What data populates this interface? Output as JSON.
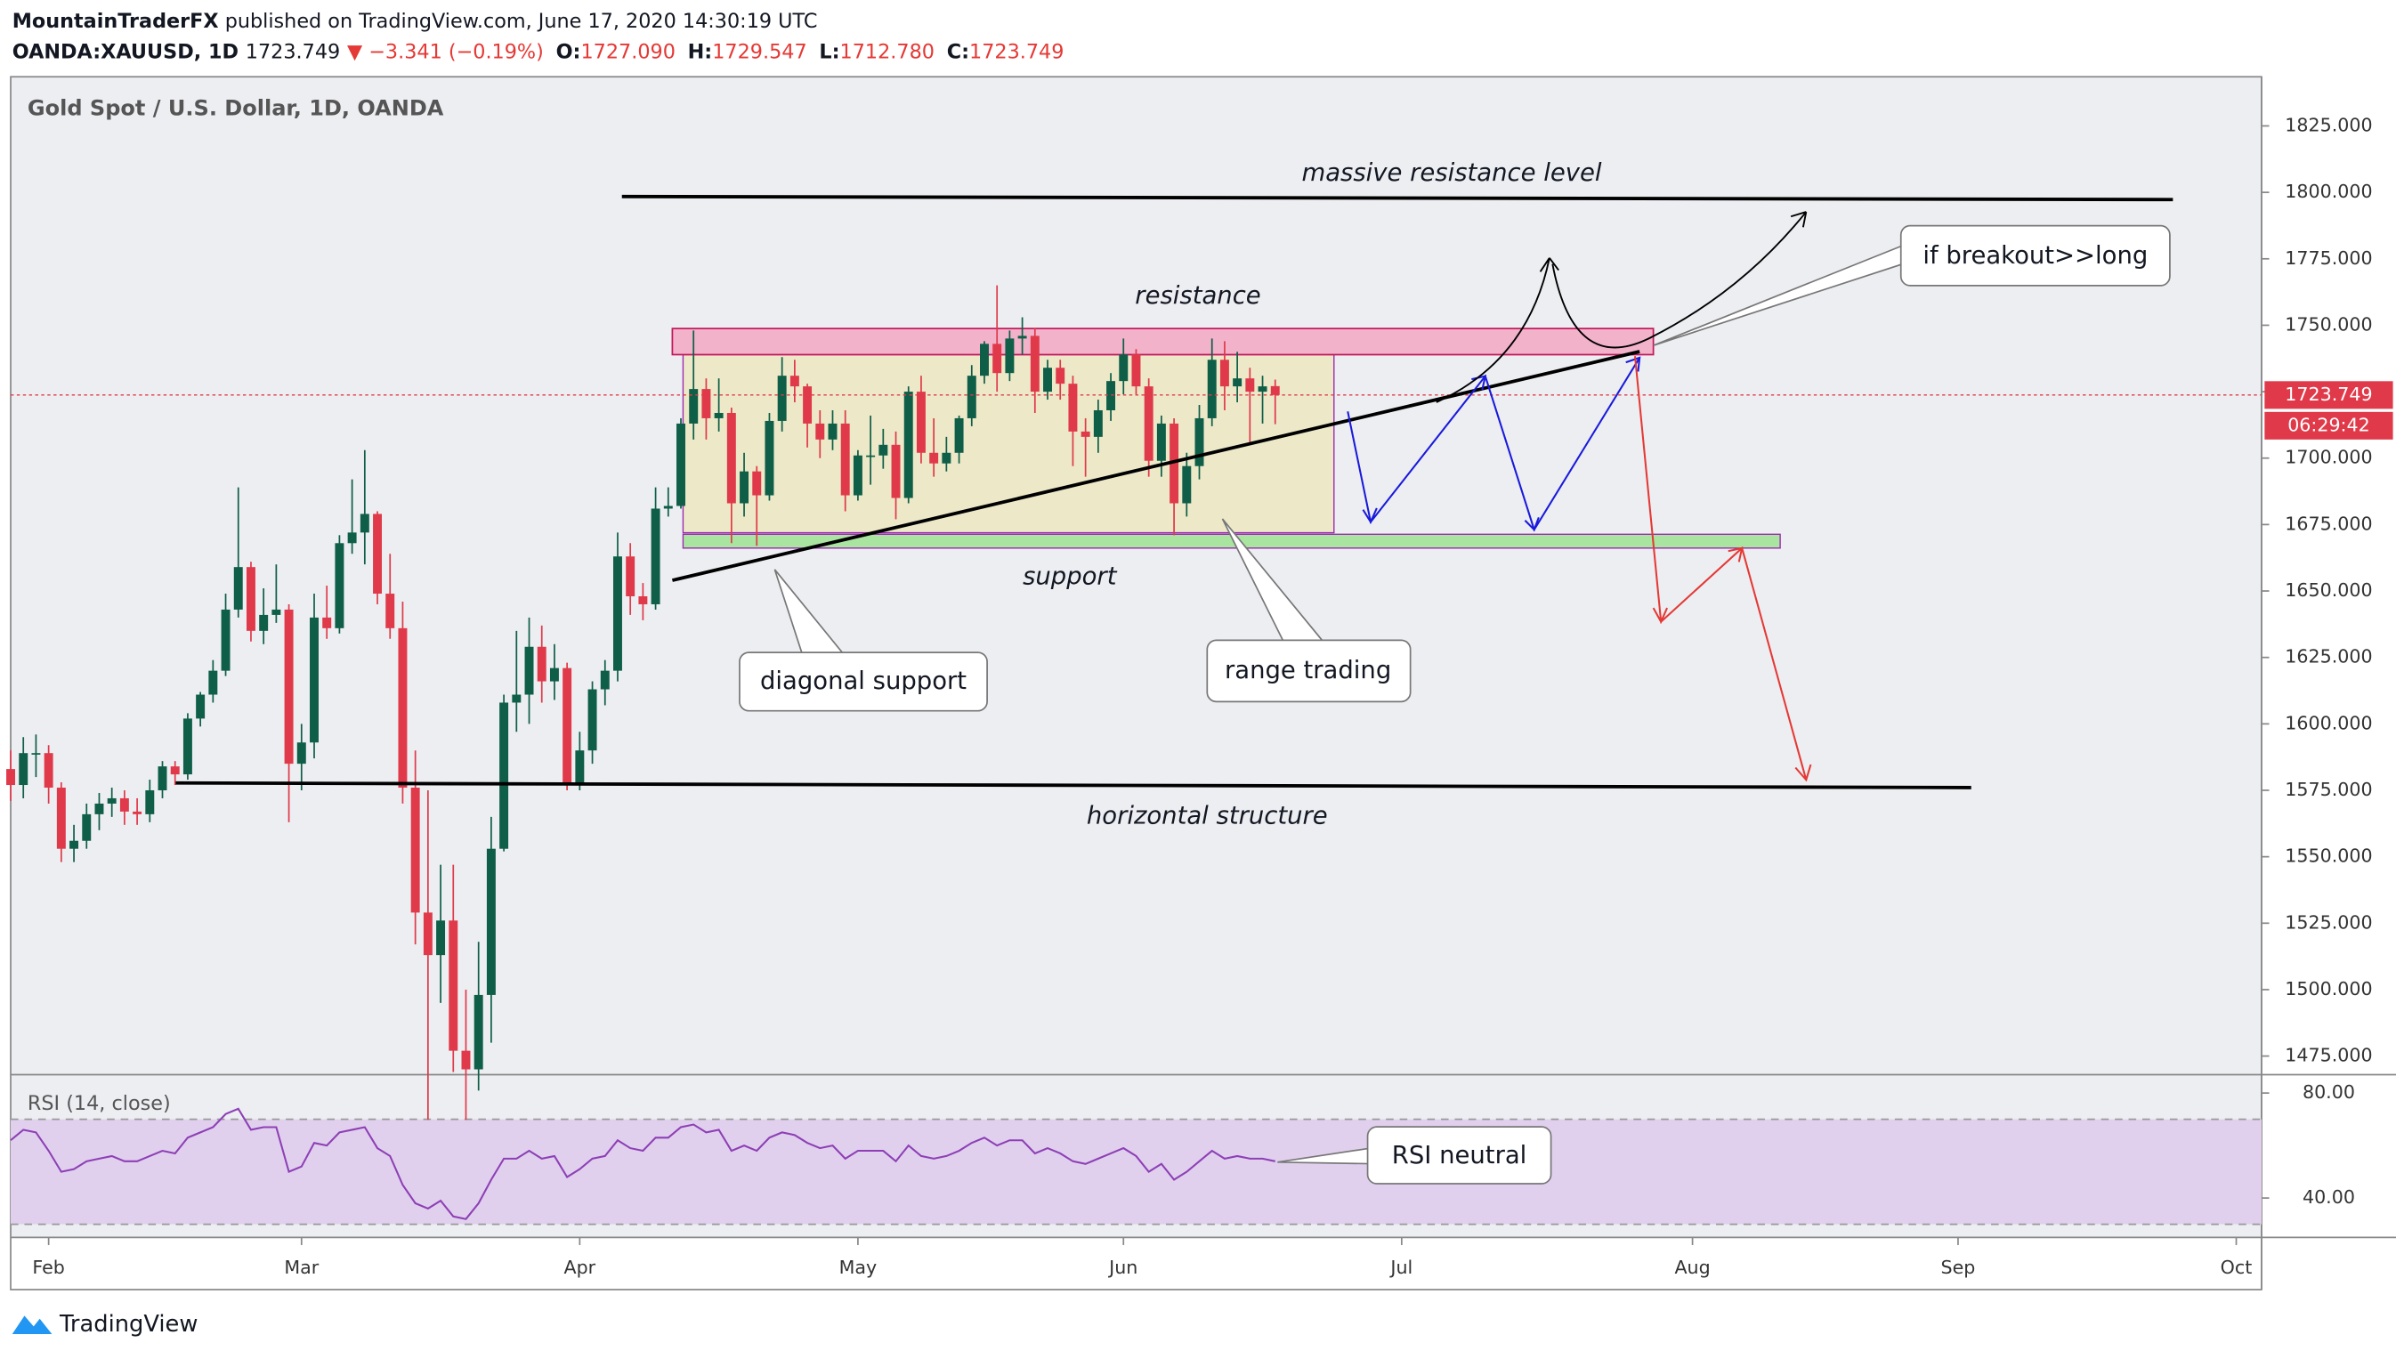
{
  "header": {
    "author": "MountainTraderFX",
    "published": "published on TradingView.com, June 17, 2020 14:30:19 UTC",
    "symbol": "OANDA:XAUUSD, 1D",
    "last": "1723.749",
    "change": "▼ −3.341 (−0.19%)",
    "ohlc": [
      {
        "label": "O:",
        "value": "1727.090"
      },
      {
        "label": "H:",
        "value": "1729.547"
      },
      {
        "label": "L:",
        "value": "1712.780"
      },
      {
        "label": "C:",
        "value": "1723.749"
      }
    ]
  },
  "chart_data": {
    "type": "candlestick",
    "title": "Gold Spot / U.S. Dollar, 1D, OANDA",
    "up_color": "#0f5e47",
    "down_color": "#e03a4a",
    "candles": [
      [
        1583,
        1590,
        1571,
        1577
      ],
      [
        1577,
        1595,
        1572,
        1589
      ],
      [
        1589,
        1596,
        1580,
        1589
      ],
      [
        1589,
        1592,
        1570,
        1576
      ],
      [
        1576,
        1578,
        1548,
        1553
      ],
      [
        1553,
        1562,
        1548,
        1556
      ],
      [
        1556,
        1570,
        1553,
        1566
      ],
      [
        1566,
        1574,
        1560,
        1570
      ],
      [
        1570,
        1576,
        1565,
        1572
      ],
      [
        1572,
        1575,
        1562,
        1567
      ],
      [
        1567,
        1572,
        1562,
        1566
      ],
      [
        1566,
        1579,
        1563,
        1575
      ],
      [
        1575,
        1586,
        1572,
        1584
      ],
      [
        1584,
        1586,
        1577,
        1581
      ],
      [
        1581,
        1604,
        1579,
        1602
      ],
      [
        1602,
        1612,
        1599,
        1611
      ],
      [
        1611,
        1624,
        1608,
        1620
      ],
      [
        1620,
        1649,
        1618,
        1643
      ],
      [
        1643,
        1689,
        1640,
        1659
      ],
      [
        1659,
        1661,
        1631,
        1635
      ],
      [
        1635,
        1651,
        1630,
        1641
      ],
      [
        1641,
        1660,
        1638,
        1643
      ],
      [
        1643,
        1645,
        1563,
        1585
      ],
      [
        1585,
        1600,
        1575,
        1593
      ],
      [
        1593,
        1649,
        1587,
        1640
      ],
      [
        1640,
        1652,
        1632,
        1636
      ],
      [
        1636,
        1671,
        1634,
        1668
      ],
      [
        1668,
        1692,
        1664,
        1672
      ],
      [
        1672,
        1703,
        1660,
        1679
      ],
      [
        1679,
        1680,
        1645,
        1649
      ],
      [
        1649,
        1664,
        1632,
        1636
      ],
      [
        1636,
        1646,
        1570,
        1576
      ],
      [
        1576,
        1590,
        1517,
        1529
      ],
      [
        1529,
        1575,
        1451,
        1513
      ],
      [
        1513,
        1547,
        1495,
        1526
      ],
      [
        1526,
        1547,
        1469,
        1477
      ],
      [
        1477,
        1500,
        1451,
        1470
      ],
      [
        1470,
        1518,
        1462,
        1498
      ],
      [
        1498,
        1565,
        1480,
        1553
      ],
      [
        1553,
        1611,
        1552,
        1608
      ],
      [
        1608,
        1635,
        1597,
        1611
      ],
      [
        1611,
        1640,
        1600,
        1629
      ],
      [
        1629,
        1637,
        1608,
        1616
      ],
      [
        1616,
        1630,
        1609,
        1621
      ],
      [
        1621,
        1623,
        1575,
        1577
      ],
      [
        1577,
        1597,
        1575,
        1590
      ],
      [
        1590,
        1616,
        1585,
        1613
      ],
      [
        1613,
        1624,
        1607,
        1620
      ],
      [
        1620,
        1672,
        1616,
        1663
      ],
      [
        1663,
        1668,
        1641,
        1648
      ],
      [
        1648,
        1653,
        1639,
        1645
      ],
      [
        1645,
        1689,
        1643,
        1681
      ],
      [
        1681,
        1689,
        1678,
        1682
      ],
      [
        1682,
        1715,
        1681,
        1713
      ],
      [
        1713,
        1748,
        1707,
        1726
      ],
      [
        1726,
        1730,
        1707,
        1715
      ],
      [
        1715,
        1730,
        1710,
        1717
      ],
      [
        1717,
        1719,
        1668,
        1683
      ],
      [
        1683,
        1702,
        1678,
        1695
      ],
      [
        1695,
        1697,
        1667,
        1686
      ],
      [
        1686,
        1717,
        1684,
        1714
      ],
      [
        1714,
        1738,
        1710,
        1731
      ],
      [
        1731,
        1737,
        1721,
        1727
      ],
      [
        1727,
        1728,
        1704,
        1713
      ],
      [
        1713,
        1718,
        1700,
        1707
      ],
      [
        1707,
        1718,
        1703,
        1713
      ],
      [
        1713,
        1718,
        1680,
        1686
      ],
      [
        1686,
        1703,
        1684,
        1701
      ],
      [
        1701,
        1716,
        1690,
        1701
      ],
      [
        1701,
        1711,
        1696,
        1705
      ],
      [
        1705,
        1710,
        1677,
        1685
      ],
      [
        1685,
        1727,
        1683,
        1725
      ],
      [
        1725,
        1731,
        1698,
        1702
      ],
      [
        1702,
        1715,
        1693,
        1698
      ],
      [
        1698,
        1708,
        1695,
        1702
      ],
      [
        1702,
        1716,
        1698,
        1715
      ],
      [
        1715,
        1735,
        1712,
        1731
      ],
      [
        1731,
        1744,
        1728,
        1743
      ],
      [
        1743,
        1765,
        1725,
        1732
      ],
      [
        1732,
        1748,
        1729,
        1745
      ],
      [
        1745,
        1753,
        1739,
        1746
      ],
      [
        1746,
        1749,
        1717,
        1725
      ],
      [
        1725,
        1737,
        1722,
        1734
      ],
      [
        1734,
        1737,
        1722,
        1728
      ],
      [
        1728,
        1731,
        1697,
        1710
      ],
      [
        1710,
        1715,
        1693,
        1708
      ],
      [
        1708,
        1722,
        1702,
        1718
      ],
      [
        1718,
        1732,
        1714,
        1729
      ],
      [
        1729,
        1745,
        1724,
        1739
      ],
      [
        1739,
        1741,
        1724,
        1727
      ],
      [
        1727,
        1730,
        1693,
        1699
      ],
      [
        1699,
        1716,
        1693,
        1713
      ],
      [
        1713,
        1715,
        1671,
        1683
      ],
      [
        1683,
        1702,
        1678,
        1697
      ],
      [
        1697,
        1720,
        1692,
        1715
      ],
      [
        1715,
        1745,
        1712,
        1737
      ],
      [
        1737,
        1744,
        1718,
        1727
      ],
      [
        1727,
        1740,
        1721,
        1730
      ],
      [
        1730,
        1734,
        1706,
        1725
      ],
      [
        1725,
        1731,
        1713,
        1727
      ],
      [
        1727.09,
        1729.547,
        1712.78,
        1723.749
      ]
    ],
    "xlim": [
      0,
      178
    ],
    "xticks": [
      {
        "value": 3,
        "label": "Feb"
      },
      {
        "value": 23,
        "label": "Mar"
      },
      {
        "value": 45,
        "label": "Apr"
      },
      {
        "value": 67,
        "label": "May"
      },
      {
        "value": 88,
        "label": "Jun"
      },
      {
        "value": 110,
        "label": "Jul"
      },
      {
        "value": 133,
        "label": "Aug"
      },
      {
        "value": 154,
        "label": "Sep"
      },
      {
        "value": 176,
        "label": "Oct"
      }
    ],
    "ylim": [
      1468,
      1843.5
    ],
    "yticks": [
      {
        "value": 1475,
        "label": "1475.000"
      },
      {
        "value": 1500,
        "label": "1500.000"
      },
      {
        "value": 1525,
        "label": "1525.000"
      },
      {
        "value": 1550,
        "label": "1550.000"
      },
      {
        "value": 1575,
        "label": "1575.000"
      },
      {
        "value": 1600,
        "label": "1600.000"
      },
      {
        "value": 1625,
        "label": "1625.000"
      },
      {
        "value": 1650,
        "label": "1650.000"
      },
      {
        "value": 1675,
        "label": "1675.000"
      },
      {
        "value": 1700,
        "label": "1700.000"
      },
      {
        "value": 1725,
        "label": "1725.000"
      },
      {
        "value": 1750,
        "label": "1750.000"
      },
      {
        "value": 1775,
        "label": "1775.000"
      },
      {
        "value": 1800,
        "label": "1800.000"
      },
      {
        "value": 1825,
        "label": "1825.000"
      }
    ],
    "countdown": "06:29:42",
    "annotations": {
      "massive_resistance": "massive resistance level",
      "resistance": "resistance",
      "support": "support",
      "diagonal_support": "diagonal support",
      "range_trading": "range trading",
      "horizontal_structure": "horizontal structure",
      "breakout": "if breakout>>long",
      "rsi_neutral": "RSI neutral"
    },
    "rsi": {
      "name": "RSI (14, close)",
      "color": "#8e3fb5",
      "band_color": "#e0d0ee",
      "ylim": [
        25,
        87
      ],
      "yticks": [
        {
          "value": 80,
          "label": "80.00"
        },
        {
          "value": 40,
          "label": "40.00"
        }
      ],
      "bands": [
        30,
        70
      ],
      "values": [
        62,
        66,
        65,
        58,
        50,
        51,
        54,
        55,
        56,
        54,
        54,
        56,
        58,
        57,
        63,
        65,
        67,
        72,
        74,
        66,
        67,
        67,
        50,
        52,
        61,
        60,
        65,
        66,
        67,
        59,
        56,
        45,
        38,
        36,
        39,
        33,
        32,
        38,
        47,
        55,
        55,
        58,
        55,
        56,
        48,
        51,
        55,
        56,
        62,
        59,
        58,
        63,
        63,
        67,
        68,
        65,
        66,
        58,
        60,
        58,
        63,
        65,
        64,
        61,
        59,
        60,
        55,
        58,
        58,
        58,
        54,
        60,
        56,
        55,
        56,
        58,
        61,
        63,
        60,
        62,
        62,
        57,
        59,
        57,
        54,
        53,
        55,
        57,
        59,
        56,
        50,
        53,
        47,
        50,
        54,
        58,
        55,
        56,
        55,
        55,
        54
      ]
    }
  },
  "footer": {
    "brand": "TradingView"
  }
}
